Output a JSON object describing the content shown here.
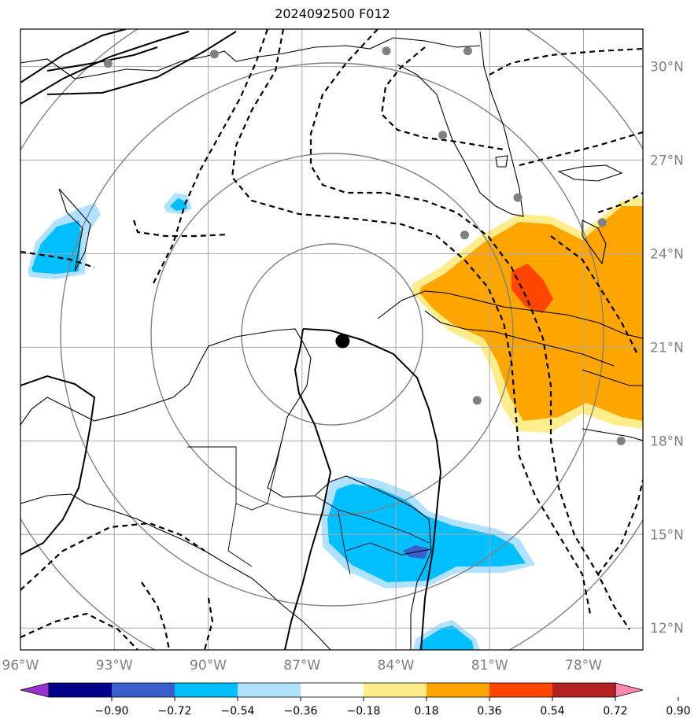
{
  "title": "2024092500 F012",
  "map": {
    "lon_ticks": [
      {
        "value": -96,
        "label": "96°W"
      },
      {
        "value": -93,
        "label": "93°W"
      },
      {
        "value": -90,
        "label": "90°W"
      },
      {
        "value": -87,
        "label": "87°W"
      },
      {
        "value": -84,
        "label": "84°W"
      },
      {
        "value": -81,
        "label": "81°W"
      },
      {
        "value": -78,
        "label": "78°W"
      }
    ],
    "lat_ticks": [
      {
        "value": 30,
        "label": "30°N"
      },
      {
        "value": 27,
        "label": "27°N"
      },
      {
        "value": 24,
        "label": "24°N"
      },
      {
        "value": 21,
        "label": "21°N"
      },
      {
        "value": 18,
        "label": "18°N"
      },
      {
        "value": 15,
        "label": "15°N"
      },
      {
        "value": 12,
        "label": "12°N"
      }
    ],
    "extent": {
      "lon_min": -96,
      "lon_max": -76.1,
      "lat_min": 11.3,
      "lat_max": 31.2
    },
    "storm_center": {
      "lon": -85.7,
      "lat": 21.2
    },
    "stations": [
      {
        "lon": -93.2,
        "lat": 30.1
      },
      {
        "lon": -89.8,
        "lat": 30.4
      },
      {
        "lon": -84.3,
        "lat": 30.5
      },
      {
        "lon": -81.7,
        "lat": 30.5
      },
      {
        "lon": -82.5,
        "lat": 27.8
      },
      {
        "lon": -80.1,
        "lat": 25.8
      },
      {
        "lon": -81.8,
        "lat": 24.6
      },
      {
        "lon": -77.4,
        "lat": 25.0
      },
      {
        "lon": -81.4,
        "lat": 19.3
      },
      {
        "lon": -76.8,
        "lat": 18.0
      }
    ]
  },
  "colorbar": {
    "ticks": [
      "−0.90",
      "−0.72",
      "−0.54",
      "−0.36",
      "−0.18",
      "0.18",
      "0.36",
      "0.54",
      "0.72",
      "0.90"
    ],
    "colors": [
      "#9932CC",
      "#00008B",
      "#3A5FCD",
      "#00BFFF",
      "#B0E2FF",
      "#FFFFFF",
      "#FFEC8B",
      "#FFA500",
      "#FF4500",
      "#B22222",
      "#FF88AA"
    ]
  }
}
